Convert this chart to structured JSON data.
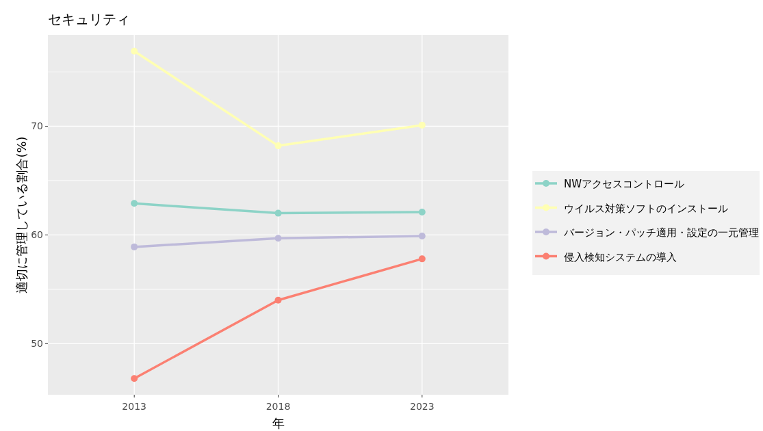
{
  "chart_data": {
    "type": "line",
    "title": "セキュリティ",
    "xlabel": "年",
    "ylabel": "適切に管理している割合(%)",
    "categories": [
      "2013",
      "2018",
      "2023"
    ],
    "series": [
      {
        "name": "NWアクセスコントロール",
        "color": "#8dd3c7",
        "values": [
          62.9,
          62.0,
          62.1
        ]
      },
      {
        "name": "ウイルス対策ソフトのインストール",
        "color": "#ffffb3",
        "values": [
          76.9,
          68.2,
          70.1
        ]
      },
      {
        "name": "バージョン・パッチ適用・設定の一元管理",
        "color": "#bebada",
        "values": [
          58.9,
          59.7,
          59.9
        ]
      },
      {
        "name": "侵入検知システムの導入",
        "color": "#fb8072",
        "values": [
          46.8,
          54.0,
          57.8
        ]
      }
    ],
    "ylim": [
      45.3,
      78.4
    ],
    "yticks": [
      50,
      60,
      70
    ],
    "grid": true,
    "legend": "right",
    "marker": "circle",
    "line_style": "solid"
  }
}
